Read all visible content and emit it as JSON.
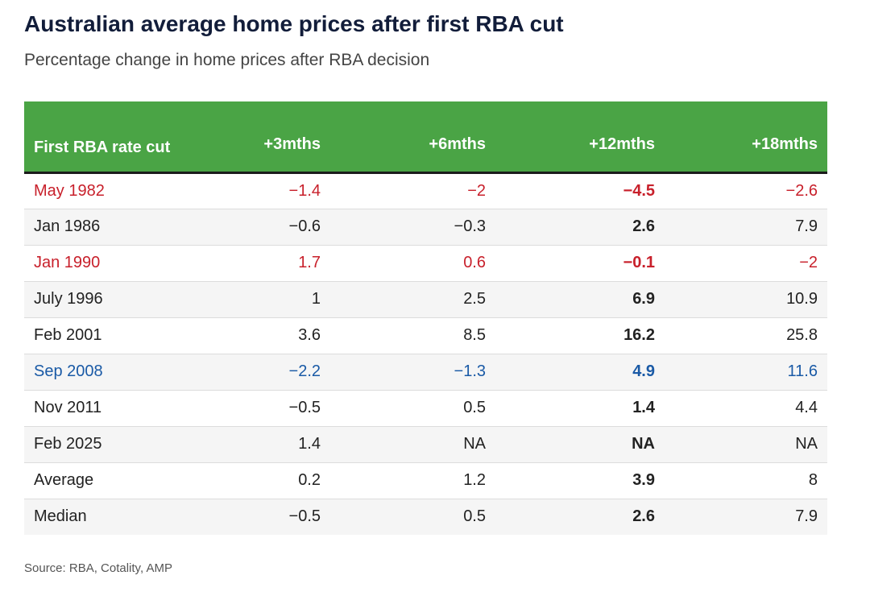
{
  "title": "Australian average home prices after first RBA cut",
  "subtitle": "Percentage change in home prices after RBA decision",
  "source": "Source: RBA, Cotality, AMP",
  "colors": {
    "header_bg": "#4aa445",
    "title": "#121d3a",
    "highlight_red": "#c8202b",
    "highlight_blue": "#1a5aa6"
  },
  "chart_data": {
    "type": "table",
    "columns": [
      "First RBA rate cut",
      "+3mths",
      "+6mths",
      "+12mths",
      "+18mths"
    ],
    "rows": [
      {
        "label": "May 1982",
        "values": [
          "−1.4",
          "−2",
          "−4.5",
          "−2.6"
        ],
        "color": "red"
      },
      {
        "label": "Jan 1986",
        "values": [
          "−0.6",
          "−0.3",
          "2.6",
          "7.9"
        ],
        "color": "default"
      },
      {
        "label": "Jan 1990",
        "values": [
          "1.7",
          "0.6",
          "−0.1",
          "−2"
        ],
        "color": "red"
      },
      {
        "label": "July 1996",
        "values": [
          "1",
          "2.5",
          "6.9",
          "10.9"
        ],
        "color": "default"
      },
      {
        "label": "Feb 2001",
        "values": [
          "3.6",
          "8.5",
          "16.2",
          "25.8"
        ],
        "color": "default"
      },
      {
        "label": "Sep 2008",
        "values": [
          "−2.2",
          "−1.3",
          "4.9",
          "11.6"
        ],
        "color": "blue"
      },
      {
        "label": "Nov 2011",
        "values": [
          "−0.5",
          "0.5",
          "1.4",
          "4.4"
        ],
        "color": "default"
      },
      {
        "label": "Feb 2025",
        "values": [
          "1.4",
          "NA",
          "NA",
          "NA"
        ],
        "color": "default"
      },
      {
        "label": "Average",
        "values": [
          "0.2",
          "1.2",
          "3.9",
          "8"
        ],
        "color": "default"
      },
      {
        "label": "Median",
        "values": [
          "−0.5",
          "0.5",
          "2.6",
          "7.9"
        ],
        "color": "default"
      }
    ]
  }
}
